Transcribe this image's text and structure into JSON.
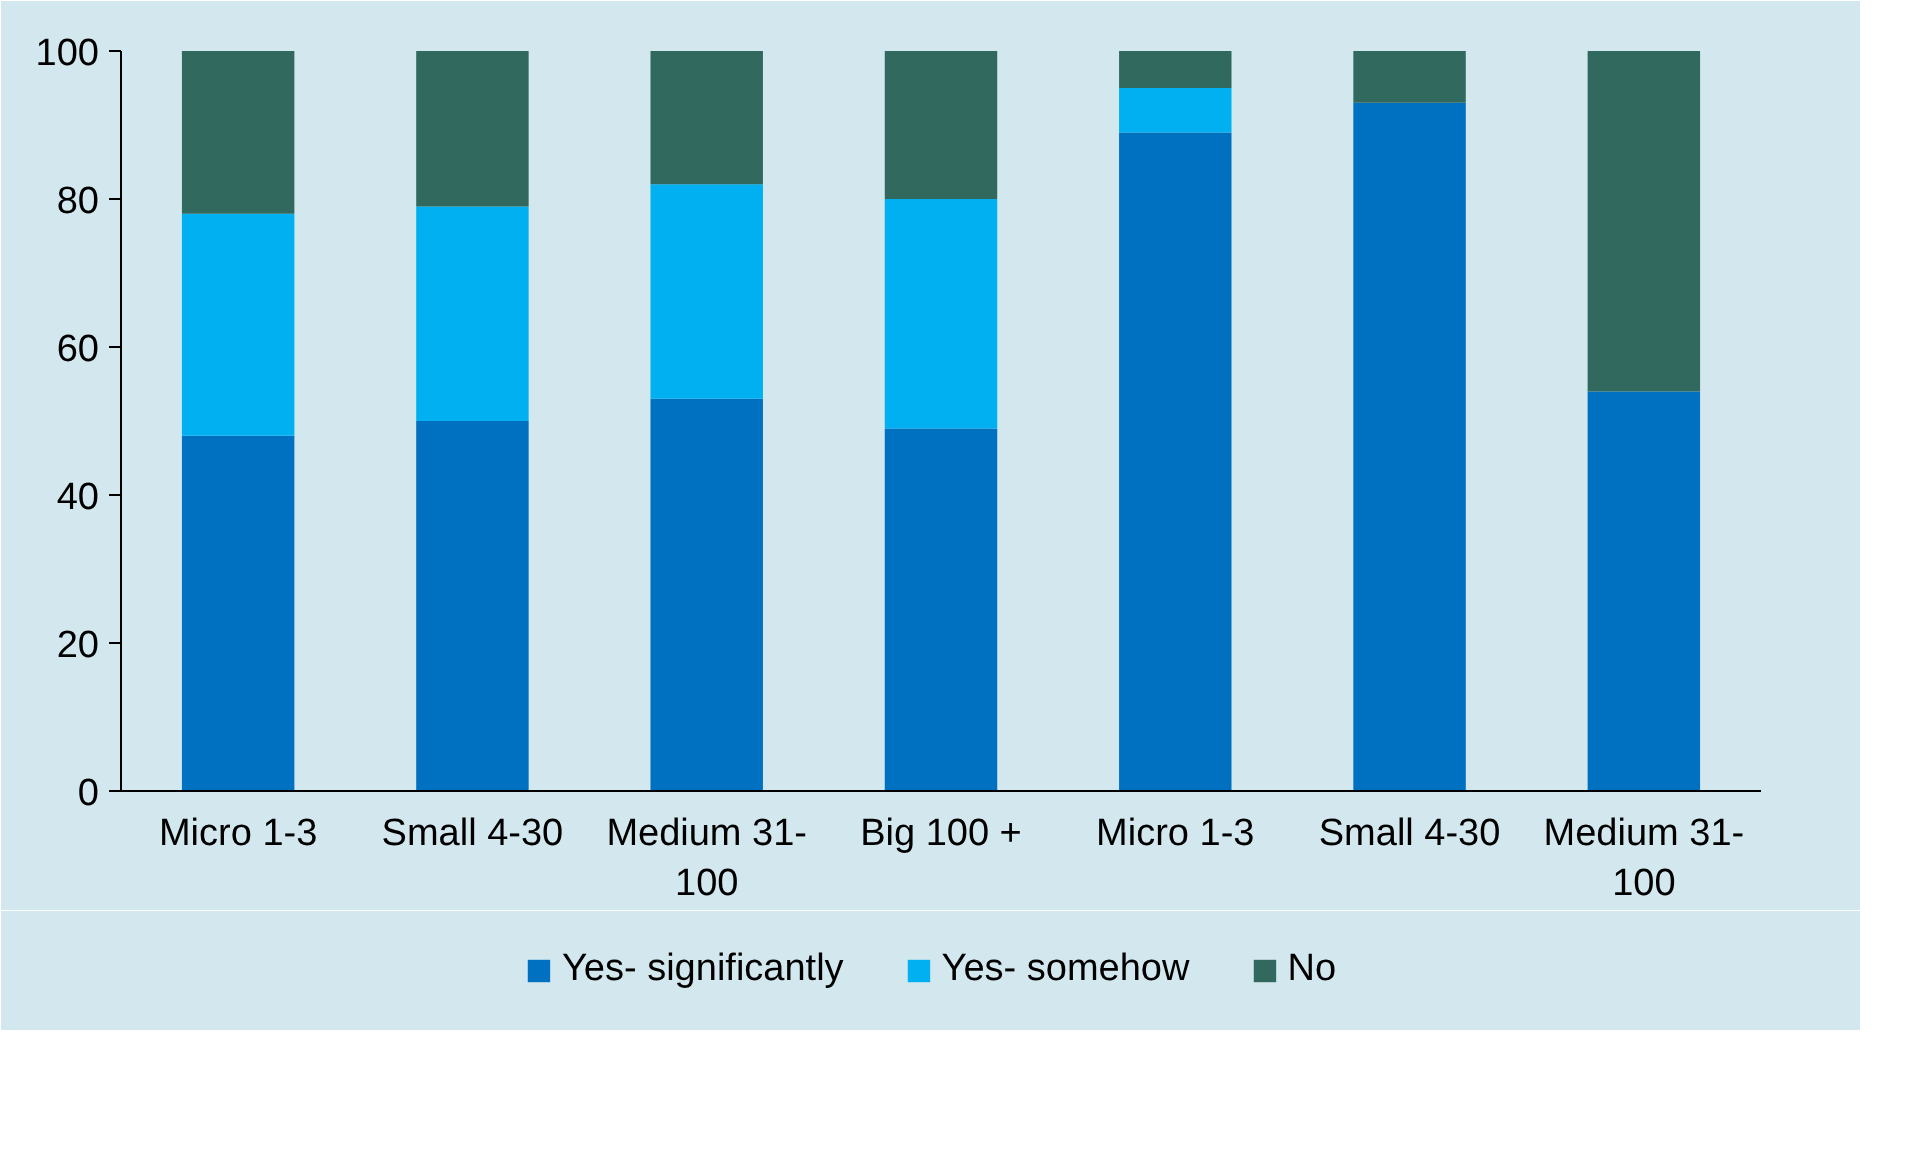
{
  "chart_data": {
    "type": "bar",
    "stacked": true,
    "categories": [
      "Micro 1-3",
      "Small 4-30",
      "Medium 31-100",
      "Big 100 +",
      "Micro 1-3",
      "Small 4-30",
      "Medium 31-100"
    ],
    "series": [
      {
        "name": "Yes- significantly",
        "color": "#0070c0",
        "values": [
          48,
          50,
          53,
          49,
          89,
          93,
          54
        ]
      },
      {
        "name": "Yes- somehow",
        "color": "#00b0f0",
        "values": [
          30,
          29,
          29,
          31,
          6,
          null,
          null
        ]
      },
      {
        "name": "No",
        "color": "#31695f",
        "values": [
          22,
          21,
          18,
          20,
          5,
          7,
          46
        ]
      }
    ],
    "ylim": [
      0,
      100
    ],
    "yticks": [
      0,
      20,
      40,
      60,
      80,
      100
    ],
    "grid": false,
    "legend": "bottom"
  }
}
